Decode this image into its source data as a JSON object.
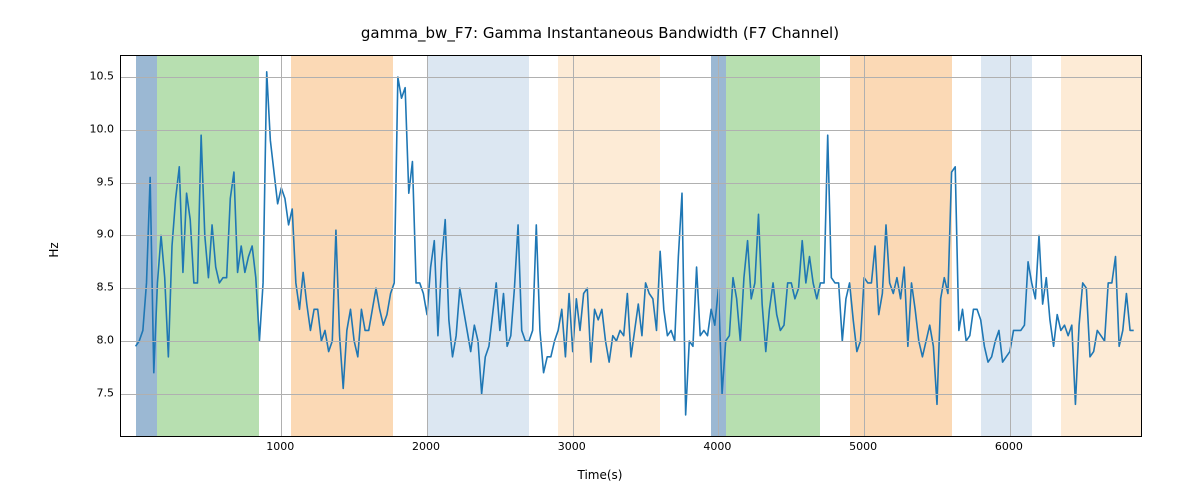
{
  "chart": {
    "type": "line",
    "title": "gamma_bw_F7: Gamma Instantaneous Bandwidth (F7 Channel)",
    "title_fontsize": 15,
    "xlabel": "Time(s)",
    "ylabel": "Hz",
    "label_fontsize": 12,
    "tick_fontsize": 11,
    "xlim": [
      -100,
      6900
    ],
    "ylim": [
      7.1,
      10.7
    ],
    "xticks": [
      1000,
      2000,
      3000,
      4000,
      5000,
      6000
    ],
    "yticks": [
      7.5,
      8.0,
      8.5,
      9.0,
      9.5,
      10.0,
      10.5
    ],
    "background_color": "#ffffff",
    "grid_color": "#b0b0b0",
    "line_color": "#1f77b4",
    "line_width": 1.6,
    "band_colors": {
      "blue": "#9bb8d3",
      "green": "#b7dfb0",
      "orange": "#fbd9b5",
      "lightblue": "#dce7f2",
      "lightorange": "#fdebd6"
    },
    "bands": [
      {
        "start": 0,
        "end": 150,
        "color": "blue"
      },
      {
        "start": 150,
        "end": 850,
        "color": "green"
      },
      {
        "start": 1070,
        "end": 1770,
        "color": "orange"
      },
      {
        "start": 2000,
        "end": 2700,
        "color": "lightblue"
      },
      {
        "start": 2900,
        "end": 3600,
        "color": "lightorange"
      },
      {
        "start": 3950,
        "end": 4050,
        "color": "blue"
      },
      {
        "start": 4050,
        "end": 4700,
        "color": "green"
      },
      {
        "start": 4900,
        "end": 5600,
        "color": "orange"
      },
      {
        "start": 5800,
        "end": 6150,
        "color": "lightblue"
      },
      {
        "start": 6350,
        "end": 6900,
        "color": "lightorange"
      }
    ],
    "series": {
      "x": [
        0,
        25,
        50,
        75,
        100,
        125,
        150,
        175,
        200,
        225,
        250,
        275,
        300,
        325,
        350,
        375,
        400,
        425,
        450,
        475,
        500,
        525,
        550,
        575,
        600,
        625,
        650,
        675,
        700,
        725,
        750,
        775,
        800,
        825,
        850,
        875,
        900,
        925,
        950,
        975,
        1000,
        1025,
        1050,
        1075,
        1100,
        1125,
        1150,
        1175,
        1200,
        1225,
        1250,
        1275,
        1300,
        1325,
        1350,
        1375,
        1400,
        1425,
        1450,
        1475,
        1500,
        1525,
        1550,
        1575,
        1600,
        1625,
        1650,
        1675,
        1700,
        1725,
        1750,
        1775,
        1800,
        1825,
        1850,
        1875,
        1900,
        1925,
        1950,
        1975,
        2000,
        2025,
        2050,
        2075,
        2100,
        2125,
        2150,
        2175,
        2200,
        2225,
        2250,
        2275,
        2300,
        2325,
        2350,
        2375,
        2400,
        2425,
        2450,
        2475,
        2500,
        2525,
        2550,
        2575,
        2600,
        2625,
        2650,
        2675,
        2700,
        2725,
        2750,
        2775,
        2800,
        2825,
        2850,
        2875,
        2900,
        2925,
        2950,
        2975,
        3000,
        3025,
        3050,
        3075,
        3100,
        3125,
        3150,
        3175,
        3200,
        3225,
        3250,
        3275,
        3300,
        3325,
        3350,
        3375,
        3400,
        3425,
        3450,
        3475,
        3500,
        3525,
        3550,
        3575,
        3600,
        3625,
        3650,
        3675,
        3700,
        3725,
        3750,
        3775,
        3800,
        3825,
        3850,
        3875,
        3900,
        3925,
        3950,
        3975,
        4000,
        4025,
        4050,
        4075,
        4100,
        4125,
        4150,
        4175,
        4200,
        4225,
        4250,
        4275,
        4300,
        4325,
        4350,
        4375,
        4400,
        4425,
        4450,
        4475,
        4500,
        4525,
        4550,
        4575,
        4600,
        4625,
        4650,
        4675,
        4700,
        4725,
        4750,
        4775,
        4800,
        4825,
        4850,
        4875,
        4900,
        4925,
        4950,
        4975,
        5000,
        5025,
        5050,
        5075,
        5100,
        5125,
        5150,
        5175,
        5200,
        5225,
        5250,
        5275,
        5300,
        5325,
        5350,
        5375,
        5400,
        5425,
        5450,
        5475,
        5500,
        5525,
        5550,
        5575,
        5600,
        5625,
        5650,
        5675,
        5700,
        5725,
        5750,
        5775,
        5800,
        5825,
        5850,
        5875,
        5900,
        5925,
        5950,
        5975,
        6000,
        6025,
        6050,
        6075,
        6100,
        6125,
        6150,
        6175,
        6200,
        6225,
        6250,
        6275,
        6300,
        6325,
        6350,
        6375,
        6400,
        6425,
        6450,
        6475,
        6500,
        6525,
        6550,
        6575,
        6600,
        6625,
        6650,
        6675,
        6700,
        6725,
        6750,
        6775,
        6800,
        6825,
        6850
      ],
      "y": [
        7.95,
        8.0,
        8.1,
        8.55,
        9.55,
        7.7,
        8.55,
        9.0,
        8.6,
        7.85,
        8.9,
        9.35,
        9.65,
        8.65,
        9.4,
        9.15,
        8.55,
        8.55,
        9.95,
        9.0,
        8.6,
        9.1,
        8.7,
        8.55,
        8.6,
        8.6,
        9.35,
        9.6,
        8.65,
        8.9,
        8.65,
        8.8,
        8.9,
        8.6,
        8.0,
        8.55,
        10.55,
        9.9,
        9.6,
        9.3,
        9.45,
        9.35,
        9.1,
        9.25,
        8.55,
        8.3,
        8.65,
        8.35,
        8.1,
        8.3,
        8.3,
        8.0,
        8.1,
        7.9,
        8.0,
        9.05,
        8.05,
        7.55,
        8.1,
        8.3,
        8.0,
        7.85,
        8.3,
        8.1,
        8.1,
        8.3,
        8.5,
        8.3,
        8.15,
        8.25,
        8.45,
        8.55,
        10.5,
        10.3,
        10.4,
        9.4,
        9.7,
        8.55,
        8.55,
        8.45,
        8.25,
        8.7,
        8.95,
        8.05,
        8.75,
        9.15,
        8.2,
        7.85,
        8.05,
        8.5,
        8.3,
        8.1,
        7.9,
        8.15,
        8.0,
        7.5,
        7.85,
        7.95,
        8.25,
        8.55,
        8.1,
        8.45,
        7.95,
        8.05,
        8.5,
        9.1,
        8.1,
        8.0,
        8.0,
        8.1,
        9.1,
        8.1,
        7.7,
        7.85,
        7.85,
        8.0,
        8.1,
        8.3,
        7.85,
        8.45,
        7.9,
        8.4,
        8.1,
        8.45,
        8.5,
        7.8,
        8.3,
        8.2,
        8.3,
        8.0,
        7.8,
        8.05,
        8.0,
        8.1,
        8.05,
        8.45,
        7.85,
        8.1,
        8.35,
        8.05,
        8.55,
        8.45,
        8.4,
        8.1,
        8.85,
        8.3,
        8.05,
        8.1,
        8.0,
        8.8,
        9.4,
        7.3,
        8.0,
        7.95,
        8.7,
        8.05,
        8.1,
        8.05,
        8.3,
        8.15,
        8.5,
        7.5,
        8.0,
        8.05,
        8.6,
        8.4,
        8.0,
        8.6,
        8.95,
        8.4,
        8.55,
        9.2,
        8.35,
        7.9,
        8.3,
        8.55,
        8.25,
        8.1,
        8.15,
        8.55,
        8.55,
        8.4,
        8.5,
        8.95,
        8.55,
        8.8,
        8.55,
        8.4,
        8.55,
        8.55,
        9.95,
        8.6,
        8.55,
        8.55,
        8.0,
        8.4,
        8.55,
        8.2,
        7.9,
        8.0,
        8.6,
        8.55,
        8.55,
        8.9,
        8.25,
        8.45,
        9.1,
        8.55,
        8.45,
        8.6,
        8.4,
        8.7,
        7.95,
        8.55,
        8.3,
        8.0,
        7.85,
        8.0,
        8.15,
        7.95,
        7.4,
        8.4,
        8.6,
        8.45,
        9.6,
        9.65,
        8.1,
        8.3,
        8.0,
        8.05,
        8.3,
        8.3,
        8.2,
        7.95,
        7.8,
        7.85,
        8.0,
        8.1,
        7.8,
        7.85,
        7.9,
        8.1,
        8.1,
        8.1,
        8.15,
        8.75,
        8.55,
        8.4,
        9.0,
        8.35,
        8.6,
        8.2,
        7.95,
        8.25,
        8.1,
        8.15,
        8.05,
        8.15,
        7.4,
        8.15,
        8.55,
        8.5,
        7.85,
        7.9,
        8.1,
        8.05,
        8.0,
        8.55,
        8.55,
        8.8,
        7.95,
        8.1,
        8.45,
        8.1,
        8.1
      ]
    }
  }
}
